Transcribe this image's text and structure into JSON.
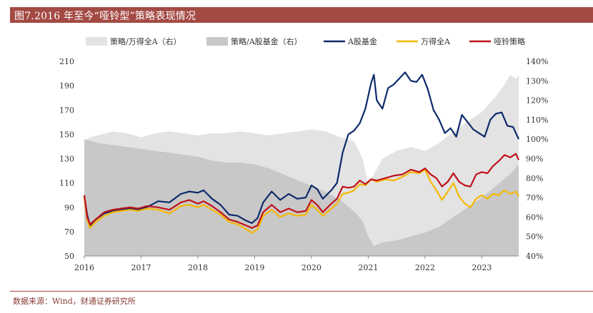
{
  "header": {
    "title": "图7.2016 年至今“哑铃型”策略表现情况"
  },
  "footer": {
    "source": "数据来源：Wind，财通证券研究所"
  },
  "colors": {
    "title_bg": "#a44a44",
    "area_light": "#e3e3e3",
    "area_dark": "#c8c8c8",
    "fund": "#0e2a6b",
    "wind_a": "#f5b800",
    "barbell": "#c0111b"
  },
  "chart_data": {
    "type": "line",
    "title": "2016 年至今“哑铃型”策略表现情况",
    "x_ticks": [
      "2016",
      "2017",
      "2018",
      "2019",
      "2020",
      "2021",
      "2022",
      "2023"
    ],
    "xlim": [
      2016.0,
      2023.65
    ],
    "y_left": {
      "ticks": [
        "210",
        "190",
        "170",
        "150",
        "130",
        "110",
        "90",
        "70",
        "50"
      ],
      "ylim": [
        50,
        210
      ]
    },
    "y_right": {
      "ticks": [
        "140%",
        "130%",
        "120%",
        "110%",
        "100%",
        "90%",
        "80%",
        "70%",
        "60%",
        "50%",
        "40%"
      ],
      "ylim": [
        40,
        140
      ]
    },
    "legend_position": "top",
    "series": [
      {
        "name": "策略/万得全A（右）",
        "type": "area",
        "axis": "right",
        "x": [
          2016.0,
          2016.1,
          2016.25,
          2016.5,
          2016.75,
          2017.0,
          2017.25,
          2017.5,
          2017.75,
          2018.0,
          2018.25,
          2018.5,
          2018.75,
          2019.0,
          2019.25,
          2019.5,
          2019.75,
          2020.0,
          2020.25,
          2020.5,
          2020.75,
          2020.9,
          2021.0,
          2021.1,
          2021.25,
          2021.5,
          2021.75,
          2022.0,
          2022.25,
          2022.5,
          2022.75,
          2023.0,
          2023.25,
          2023.4,
          2023.5,
          2023.6,
          2023.65
        ],
        "values": [
          99,
          101,
          102,
          104,
          103,
          101,
          103,
          104,
          103,
          102,
          103,
          103,
          104,
          103,
          102,
          103,
          104,
          105,
          104,
          101,
          99,
          90,
          77,
          82,
          90,
          94,
          96,
          94,
          98,
          104,
          109,
          114,
          122,
          128,
          133,
          131,
          133
        ]
      },
      {
        "name": "策略/A股基金（右）",
        "type": "area",
        "axis": "right",
        "x": [
          2016.0,
          2016.25,
          2016.5,
          2016.75,
          2017.0,
          2017.25,
          2017.5,
          2017.75,
          2018.0,
          2018.25,
          2018.5,
          2018.75,
          2019.0,
          2019.25,
          2019.5,
          2019.75,
          2020.0,
          2020.25,
          2020.5,
          2020.75,
          2020.9,
          2021.0,
          2021.1,
          2021.25,
          2021.5,
          2021.75,
          2022.0,
          2022.25,
          2022.5,
          2022.75,
          2023.0,
          2023.25,
          2023.5,
          2023.65
        ],
        "values": [
          100,
          98,
          97,
          96,
          95,
          94,
          93,
          92,
          91,
          89,
          88,
          88,
          87,
          85,
          82,
          79,
          76,
          73,
          69,
          63,
          58,
          50,
          45,
          47,
          48,
          50,
          52,
          55,
          60,
          65,
          70,
          76,
          82,
          87
        ]
      },
      {
        "name": "A股基金",
        "type": "line",
        "axis": "left",
        "x": [
          2016.0,
          2016.05,
          2016.1,
          2016.2,
          2016.35,
          2016.5,
          2016.65,
          2016.8,
          2016.95,
          2017.1,
          2017.3,
          2017.5,
          2017.7,
          2017.85,
          2018.0,
          2018.1,
          2018.25,
          2018.4,
          2018.55,
          2018.7,
          2018.85,
          2018.95,
          2019.05,
          2019.15,
          2019.3,
          2019.45,
          2019.6,
          2019.75,
          2019.9,
          2020.0,
          2020.1,
          2020.2,
          2020.35,
          2020.45,
          2020.55,
          2020.65,
          2020.75,
          2020.85,
          2020.95,
          2021.05,
          2021.1,
          2021.15,
          2021.25,
          2021.35,
          2021.45,
          2021.55,
          2021.65,
          2021.75,
          2021.85,
          2021.95,
          2022.05,
          2022.15,
          2022.25,
          2022.35,
          2022.45,
          2022.55,
          2022.65,
          2022.75,
          2022.85,
          2022.95,
          2023.05,
          2023.15,
          2023.25,
          2023.35,
          2023.45,
          2023.55,
          2023.65
        ],
        "values": [
          99,
          84,
          75,
          80,
          85,
          87,
          88,
          89,
          88,
          90,
          95,
          94,
          101,
          103,
          102,
          104,
          97,
          92,
          84,
          83,
          79,
          77,
          81,
          94,
          103,
          96,
          101,
          97,
          98,
          108,
          105,
          97,
          104,
          110,
          135,
          150,
          153,
          159,
          171,
          192,
          199,
          178,
          171,
          188,
          191,
          196,
          201,
          194,
          193,
          199,
          187,
          170,
          162,
          151,
          155,
          148,
          166,
          160,
          154,
          151,
          148,
          162,
          167,
          168,
          157,
          156,
          146
        ]
      },
      {
        "name": "万得全A",
        "type": "line",
        "axis": "left",
        "x": [
          2016.0,
          2016.05,
          2016.1,
          2016.2,
          2016.35,
          2016.5,
          2016.65,
          2016.8,
          2016.95,
          2017.1,
          2017.3,
          2017.5,
          2017.7,
          2017.85,
          2018.0,
          2018.1,
          2018.25,
          2018.4,
          2018.55,
          2018.7,
          2018.85,
          2018.95,
          2019.05,
          2019.15,
          2019.3,
          2019.45,
          2019.6,
          2019.75,
          2019.9,
          2020.0,
          2020.1,
          2020.2,
          2020.35,
          2020.45,
          2020.55,
          2020.65,
          2020.75,
          2020.85,
          2020.95,
          2021.05,
          2021.15,
          2021.3,
          2021.45,
          2021.6,
          2021.75,
          2021.9,
          2022.0,
          2022.1,
          2022.2,
          2022.3,
          2022.4,
          2022.5,
          2022.6,
          2022.7,
          2022.8,
          2022.9,
          2023.0,
          2023.1,
          2023.2,
          2023.3,
          2023.4,
          2023.5,
          2023.6,
          2023.65
        ],
        "values": [
          98,
          80,
          73,
          78,
          83,
          86,
          87,
          88,
          87,
          89,
          88,
          85,
          91,
          92,
          90,
          92,
          88,
          84,
          78,
          76,
          72,
          69,
          72,
          83,
          88,
          82,
          85,
          83,
          84,
          92,
          88,
          83,
          89,
          93,
          101,
          102,
          104,
          109,
          108,
          113,
          111,
          113,
          112,
          115,
          119,
          118,
          121,
          111,
          104,
          96,
          103,
          110,
          99,
          93,
          90,
          97,
          100,
          97,
          101,
          100,
          104,
          101,
          103,
          99
        ]
      },
      {
        "name": "哑铃策略",
        "type": "line",
        "axis": "left",
        "x": [
          2016.0,
          2016.05,
          2016.1,
          2016.2,
          2016.35,
          2016.5,
          2016.65,
          2016.8,
          2016.95,
          2017.1,
          2017.3,
          2017.5,
          2017.7,
          2017.85,
          2018.0,
          2018.1,
          2018.25,
          2018.4,
          2018.55,
          2018.7,
          2018.85,
          2018.95,
          2019.05,
          2019.15,
          2019.3,
          2019.45,
          2019.6,
          2019.75,
          2019.9,
          2020.0,
          2020.1,
          2020.2,
          2020.35,
          2020.45,
          2020.55,
          2020.65,
          2020.75,
          2020.85,
          2020.95,
          2021.05,
          2021.15,
          2021.3,
          2021.45,
          2021.6,
          2021.75,
          2021.9,
          2022.0,
          2022.1,
          2022.2,
          2022.3,
          2022.4,
          2022.5,
          2022.6,
          2022.7,
          2022.8,
          2022.9,
          2023.0,
          2023.1,
          2023.2,
          2023.3,
          2023.4,
          2023.5,
          2023.6,
          2023.65
        ],
        "values": [
          100,
          82,
          76,
          80,
          86,
          88,
          89,
          90,
          89,
          91,
          90,
          88,
          94,
          96,
          93,
          95,
          91,
          86,
          80,
          78,
          75,
          73,
          75,
          86,
          92,
          86,
          89,
          86,
          87,
          96,
          92,
          86,
          93,
          97,
          107,
          106,
          107,
          112,
          109,
          113,
          112,
          114,
          116,
          117,
          121,
          119,
          122,
          117,
          114,
          107,
          111,
          118,
          111,
          108,
          107,
          117,
          119,
          118,
          124,
          128,
          133,
          131,
          134,
          129
        ]
      }
    ]
  }
}
